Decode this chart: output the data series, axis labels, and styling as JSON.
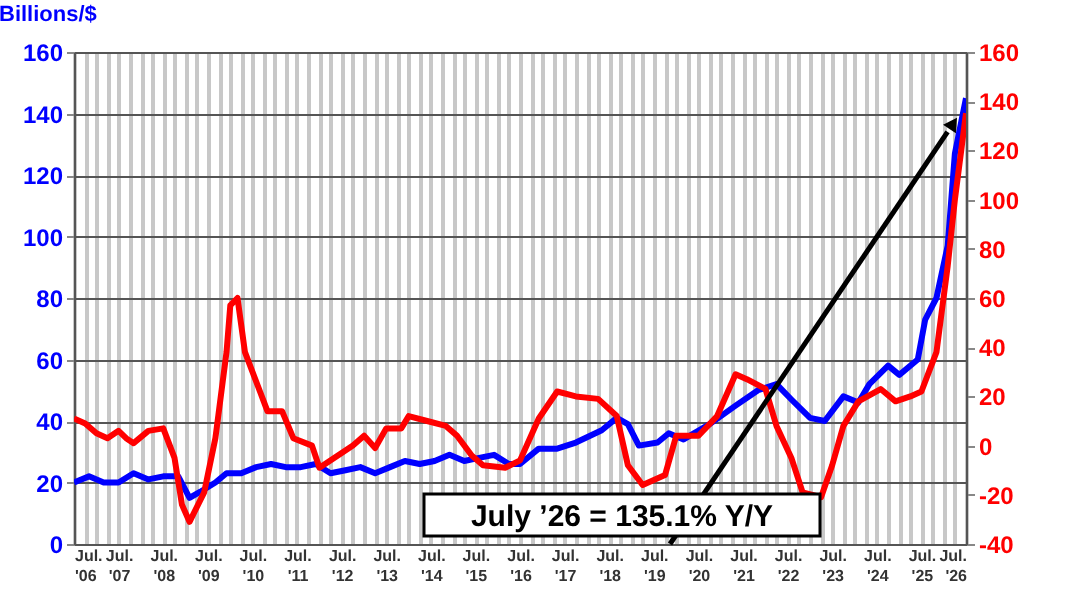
{
  "chart_data": {
    "type": "line",
    "ylabel": "Billions/$",
    "annotations": [
      "July ’26 = 135.1% Y/Y"
    ],
    "xlim": [
      "2006-07",
      "2026-07"
    ],
    "xticks": [
      {
        "value": "2006-07",
        "label": "Jul. '06"
      },
      {
        "value": "2006-10",
        "label": null
      },
      {
        "value": "2007-01",
        "label": null
      },
      {
        "value": "2007-04",
        "label": null
      },
      {
        "value": "2007-07",
        "label": "Jul. '07"
      },
      {
        "value": "2007-10",
        "label": null
      },
      {
        "value": "2008-01",
        "label": null
      },
      {
        "value": "2008-04",
        "label": null
      },
      {
        "value": "2008-07",
        "label": "Jul. '08"
      },
      {
        "value": "2008-10",
        "label": null
      },
      {
        "value": "2009-01",
        "label": null
      },
      {
        "value": "2009-04",
        "label": null
      },
      {
        "value": "2009-07",
        "label": "Jul. '09"
      },
      {
        "value": "2009-10",
        "label": null
      },
      {
        "value": "2010-01",
        "label": null
      },
      {
        "value": "2010-04",
        "label": null
      },
      {
        "value": "2010-07",
        "label": "Jul. '10"
      },
      {
        "value": "2010-10",
        "label": null
      },
      {
        "value": "2011-01",
        "label": null
      },
      {
        "value": "2011-04",
        "label": null
      },
      {
        "value": "2011-07",
        "label": "Jul. '11"
      },
      {
        "value": "2011-10",
        "label": null
      },
      {
        "value": "2012-01",
        "label": null
      },
      {
        "value": "2012-04",
        "label": null
      },
      {
        "value": "2012-07",
        "label": "Jul. '12"
      },
      {
        "value": "2012-10",
        "label": null
      },
      {
        "value": "2013-01",
        "label": null
      },
      {
        "value": "2013-04",
        "label": null
      },
      {
        "value": "2013-07",
        "label": "Jul. '13"
      },
      {
        "value": "2013-10",
        "label": null
      },
      {
        "value": "2014-01",
        "label": null
      },
      {
        "value": "2014-04",
        "label": null
      },
      {
        "value": "2014-07",
        "label": "Jul. '14"
      },
      {
        "value": "2014-10",
        "label": null
      },
      {
        "value": "2015-01",
        "label": null
      },
      {
        "value": "2015-04",
        "label": null
      },
      {
        "value": "2015-07",
        "label": "Jul. '15"
      },
      {
        "value": "2015-10",
        "label": null
      },
      {
        "value": "2016-01",
        "label": null
      },
      {
        "value": "2016-04",
        "label": null
      },
      {
        "value": "2016-07",
        "label": "Jul. '16"
      },
      {
        "value": "2016-10",
        "label": null
      },
      {
        "value": "2017-01",
        "label": null
      },
      {
        "value": "2017-04",
        "label": null
      },
      {
        "value": "2017-07",
        "label": "Jul. '17"
      },
      {
        "value": "2017-10",
        "label": null
      },
      {
        "value": "2018-01",
        "label": null
      },
      {
        "value": "2018-04",
        "label": null
      },
      {
        "value": "2018-07",
        "label": "Jul. '18"
      },
      {
        "value": "2018-10",
        "label": null
      },
      {
        "value": "2019-01",
        "label": null
      },
      {
        "value": "2019-04",
        "label": null
      },
      {
        "value": "2019-07",
        "label": "Jul. '19"
      },
      {
        "value": "2019-10",
        "label": null
      },
      {
        "value": "2020-01",
        "label": null
      },
      {
        "value": "2020-04",
        "label": null
      },
      {
        "value": "2020-07",
        "label": "Jul. '20"
      },
      {
        "value": "2020-10",
        "label": null
      },
      {
        "value": "2021-01",
        "label": null
      },
      {
        "value": "2021-04",
        "label": null
      },
      {
        "value": "2021-07",
        "label": "Jul. '21"
      },
      {
        "value": "2021-10",
        "label": null
      },
      {
        "value": "2022-01",
        "label": null
      },
      {
        "value": "2022-04",
        "label": null
      },
      {
        "value": "2022-07",
        "label": "Jul. '22"
      },
      {
        "value": "2022-10",
        "label": null
      },
      {
        "value": "2023-01",
        "label": null
      },
      {
        "value": "2023-04",
        "label": null
      },
      {
        "value": "2023-07",
        "label": "Jul. '23"
      },
      {
        "value": "2023-10",
        "label": null
      },
      {
        "value": "2024-01",
        "label": null
      },
      {
        "value": "2024-04",
        "label": null
      },
      {
        "value": "2024-07",
        "label": "Jul. '24"
      },
      {
        "value": "2024-10",
        "label": null
      },
      {
        "value": "2025-01",
        "label": null
      },
      {
        "value": "2025-04",
        "label": null
      },
      {
        "value": "2025-07",
        "label": "Jul. '25"
      },
      {
        "value": "2025-10",
        "label": null
      },
      {
        "value": "2026-01",
        "label": null
      },
      {
        "value": "2026-04",
        "label": null
      },
      {
        "value": "2026-07",
        "label": "Jul. '26"
      }
    ],
    "ylim": [
      0,
      160
    ],
    "yticks": [
      0,
      20,
      40,
      60,
      80,
      100,
      120,
      140,
      160
    ],
    "y2lim": [
      -40,
      160
    ],
    "y2ticks": [
      -40,
      -20,
      0,
      20,
      40,
      60,
      80,
      100,
      120,
      140,
      160
    ],
    "grid": true,
    "marker": "none",
    "line_style": "solid",
    "series": [
      {
        "color": "#0000ff",
        "x": [
          "2006-07",
          "2006-11",
          "2007-03",
          "2007-07",
          "2007-11",
          "2008-03",
          "2008-07",
          "2008-11",
          "2009-02",
          "2009-05",
          "2009-09",
          "2009-12",
          "2010-04",
          "2010-08",
          "2010-12",
          "2011-04",
          "2011-08",
          "2011-12",
          "2012-04",
          "2012-08",
          "2012-12",
          "2013-04",
          "2013-08",
          "2013-12",
          "2014-04",
          "2014-08",
          "2014-12",
          "2015-04",
          "2015-08",
          "2015-12",
          "2016-04",
          "2016-07",
          "2016-12",
          "2017-05",
          "2017-10",
          "2018-05",
          "2018-09",
          "2018-12",
          "2019-03",
          "2019-08",
          "2019-11",
          "2020-03",
          "2020-10",
          "2021-05",
          "2021-11",
          "2022-04",
          "2022-08",
          "2023-01",
          "2023-05",
          "2023-10",
          "2024-02",
          "2024-05",
          "2024-10",
          "2025-01",
          "2025-06",
          "2025-08",
          "2025-11",
          "2026-02",
          "2026-04",
          "2026-07"
        ],
        "values": [
          20,
          22,
          20,
          20,
          23,
          21,
          22,
          22,
          15,
          17,
          20,
          23,
          23,
          25,
          26,
          25,
          25,
          26,
          23,
          24,
          25,
          23,
          25,
          27,
          26,
          27,
          29,
          27,
          28,
          29,
          26,
          26,
          31,
          31,
          33,
          37,
          41,
          39,
          32,
          33,
          36,
          34,
          39,
          45,
          50,
          52,
          47,
          41,
          40,
          48,
          46,
          52,
          58,
          55,
          60,
          73,
          80,
          97,
          127,
          145
        ]
      },
      {
        "color": "#ff0000",
        "axis": "y2",
        "x": [
          "2006-07",
          "2006-10",
          "2007-01",
          "2007-04",
          "2007-07",
          "2007-09",
          "2007-11",
          "2008-03",
          "2008-07",
          "2008-10",
          "2008-12",
          "2009-02",
          "2009-06",
          "2009-09",
          "2009-12",
          "2010-01",
          "2010-03",
          "2010-05",
          "2010-09",
          "2010-11",
          "2011-03",
          "2011-06",
          "2011-11",
          "2012-01",
          "2012-07",
          "2012-10",
          "2013-01",
          "2013-04",
          "2013-07",
          "2013-11",
          "2014-01",
          "2014-06",
          "2014-11",
          "2015-02",
          "2015-06",
          "2015-09",
          "2016-03",
          "2016-07",
          "2016-12",
          "2017-05",
          "2017-10",
          "2018-04",
          "2018-09",
          "2018-12",
          "2019-04",
          "2019-10",
          "2020-01",
          "2020-07",
          "2020-12",
          "2021-05",
          "2021-08",
          "2022-01",
          "2022-04",
          "2022-08",
          "2022-11",
          "2023-04",
          "2023-07",
          "2023-10",
          "2024-02",
          "2024-08",
          "2024-12",
          "2025-04",
          "2025-07",
          "2025-11",
          "2026-02",
          "2026-04",
          "2026-07"
        ],
        "values": [
          11,
          9,
          5,
          3,
          6,
          3,
          1,
          6,
          7,
          -5,
          -24,
          -31,
          -19,
          3,
          38,
          57,
          60,
          38,
          22,
          14,
          14,
          3,
          0,
          -9,
          -3,
          0,
          4,
          -1,
          7,
          7,
          12,
          10,
          8,
          4,
          -4,
          -8,
          -9,
          -6,
          11,
          22,
          20,
          19,
          12,
          -8,
          -16,
          -12,
          4,
          4,
          12,
          29,
          27,
          23,
          8,
          -5,
          -19,
          -21,
          -8,
          8,
          18,
          23,
          18,
          20,
          22,
          38,
          73,
          100,
          135.1
        ]
      }
    ]
  }
}
